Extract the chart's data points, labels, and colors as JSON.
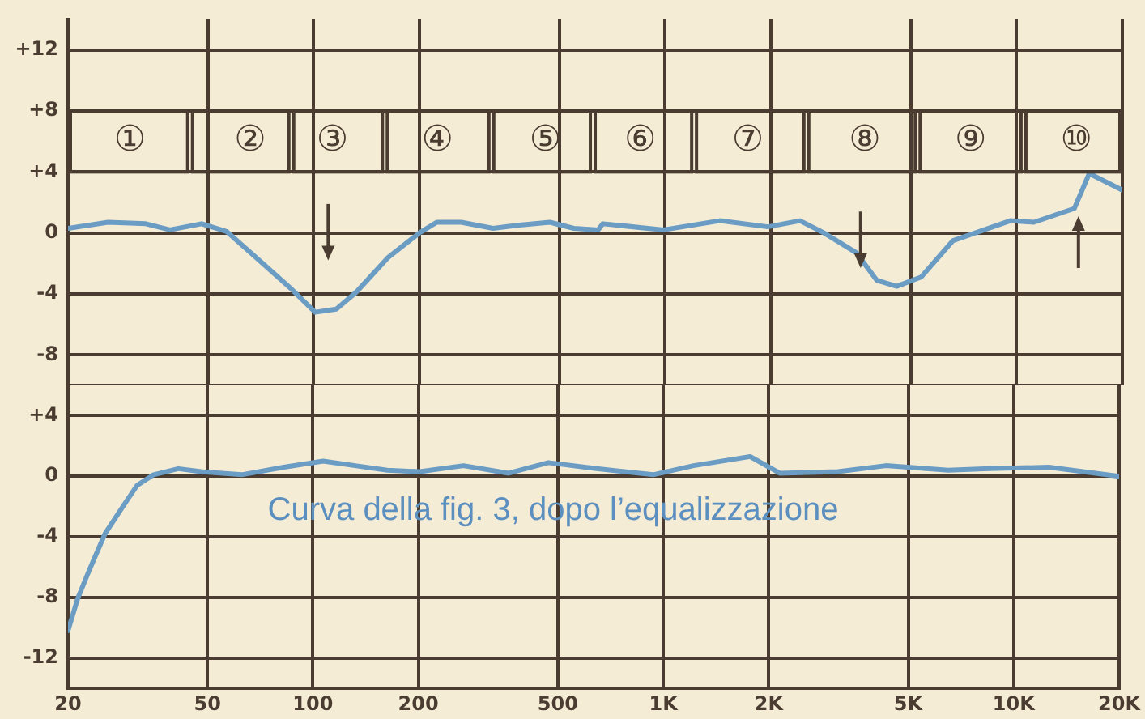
{
  "chart_data": [
    {
      "type": "line",
      "log": "x",
      "grid": true,
      "marker": "none",
      "legend": false,
      "tick_labels": "y",
      "xlim": [
        20,
        20000
      ],
      "xticks": [
        {
          "value": 20,
          "label": null
        },
        {
          "value": 50,
          "label": null
        },
        {
          "value": 100,
          "label": null
        },
        {
          "value": 200,
          "label": null
        },
        {
          "value": 500,
          "label": null
        },
        {
          "value": 1000,
          "label": null
        },
        {
          "value": 2000,
          "label": null
        },
        {
          "value": 5000,
          "label": null
        },
        {
          "value": 10000,
          "label": null
        },
        {
          "value": 20000,
          "label": null
        }
      ],
      "ylim": [
        -10,
        14
      ],
      "yticks": [
        {
          "value": 12,
          "label": "+12"
        },
        {
          "value": 8,
          "label": "+8"
        },
        {
          "value": 4,
          "label": "+4"
        },
        0,
        -4,
        -8
      ],
      "series": [
        {
          "color": "#6a9cc4",
          "x": [
            20,
            26,
            33.3,
            39,
            48,
            56.5,
            70,
            86.6,
            101,
            116,
            132,
            163,
            200,
            224,
            263,
            324,
            380,
            470,
            550,
            645,
            665,
            990,
            1430,
            1960,
            2420,
            2830,
            3500,
            4000,
            4560,
            5350,
            6600,
            9600,
            11200,
            14600,
            16100,
            20000
          ],
          "values": [
            0.3,
            0.7,
            0.6,
            0.2,
            0.6,
            0.1,
            -1.8,
            -3.7,
            -5.2,
            -5.0,
            -3.9,
            -1.6,
            0,
            0.7,
            0.7,
            0.3,
            0.5,
            0.7,
            0.3,
            0.2,
            0.6,
            0.2,
            0.8,
            0.4,
            0.8,
            0,
            -1.3,
            -3.1,
            -3.5,
            -2.9,
            -0.5,
            0.8,
            0.7,
            1.6,
            3.9,
            2.8
          ]
        }
      ],
      "annotations": [
        "①",
        "②",
        "③",
        "④",
        "⑤",
        "⑥",
        "⑦",
        "⑧",
        "⑨",
        "⑩"
      ]
    },
    {
      "type": "line",
      "log": "x",
      "grid": true,
      "marker": "none",
      "legend": false,
      "xlim": [
        20,
        20000
      ],
      "xticks": [
        20,
        50,
        100,
        200,
        500,
        {
          "value": 1000,
          "label": "1K"
        },
        {
          "value": 2000,
          "label": "2K"
        },
        {
          "value": 5000,
          "label": "5K"
        },
        {
          "value": 10000,
          "label": "10K"
        },
        {
          "value": 20000,
          "label": "20K"
        }
      ],
      "ylim": [
        -14,
        6
      ],
      "yticks": [
        {
          "value": 4,
          "label": "+4"
        },
        0,
        -4,
        -8,
        -12
      ],
      "series": [
        {
          "color": "#6a9cc4",
          "x": [
            20,
            21.3,
            23,
            25.5,
            28.5,
            31.5,
            35.1,
            41.3,
            48,
            62.6,
            82.6,
            107,
            132,
            163,
            202,
            269,
            362,
            470,
            645,
            936,
            1220,
            1770,
            2150,
            3150,
            4320,
            6500,
            8550,
            12600,
            20000
          ],
          "values": [
            -10.2,
            -8.1,
            -6.2,
            -3.8,
            -2.1,
            -0.6,
            0.1,
            0.5,
            0.3,
            0.1,
            0.6,
            1.0,
            0.7,
            0.4,
            0.3,
            0.7,
            0.2,
            0.9,
            0.5,
            0.1,
            0.7,
            1.3,
            0.2,
            0.3,
            0.7,
            0.4,
            0.5,
            0.6,
            0
          ]
        }
      ],
      "annotations": [
        "Curva della fig. 3, dopo l’equalizzazione"
      ]
    }
  ]
}
